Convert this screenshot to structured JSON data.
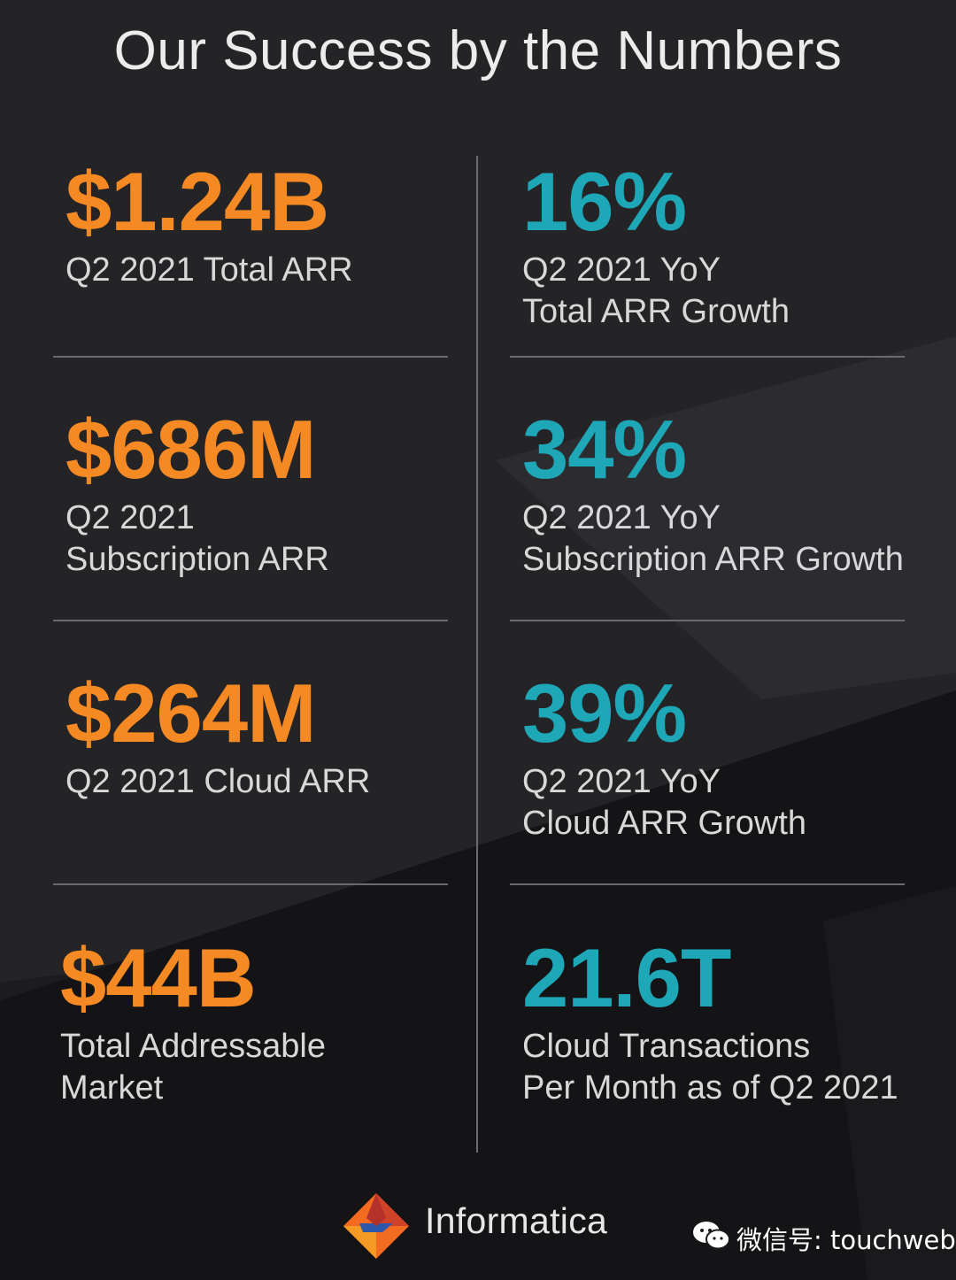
{
  "title": "Our Success by the Numbers",
  "colors": {
    "orange": "#f58a24",
    "teal": "#1ea7b7",
    "background": "#1d1d20"
  },
  "left_stats": [
    {
      "value": "$1.24B",
      "label_lines": [
        "Q2 2021 Total ARR"
      ]
    },
    {
      "value": "$686M",
      "label_lines": [
        "Q2 2021",
        "Subscription ARR"
      ]
    },
    {
      "value": "$264M",
      "label_lines": [
        "Q2 2021 Cloud ARR"
      ]
    },
    {
      "value": "$44B",
      "label_lines": [
        "Total Addressable",
        "Market"
      ]
    }
  ],
  "right_stats": [
    {
      "value": "16%",
      "label_lines": [
        "Q2 2021 YoY",
        "Total ARR Growth"
      ]
    },
    {
      "value": "34%",
      "label_lines": [
        "Q2 2021 YoY",
        "Subscription ARR Growth"
      ]
    },
    {
      "value": "39%",
      "label_lines": [
        "Q2 2021 YoY",
        "Cloud ARR Growth"
      ]
    },
    {
      "value": "21.6T",
      "label_lines": [
        "Cloud Transactions",
        "Per Month as of Q2 2021"
      ]
    }
  ],
  "footer": {
    "brand": "Informatica",
    "logo_icon": "informatica-diamond-logo",
    "watermark_icon": "wechat-icon",
    "watermark": "微信号: touchweb"
  }
}
